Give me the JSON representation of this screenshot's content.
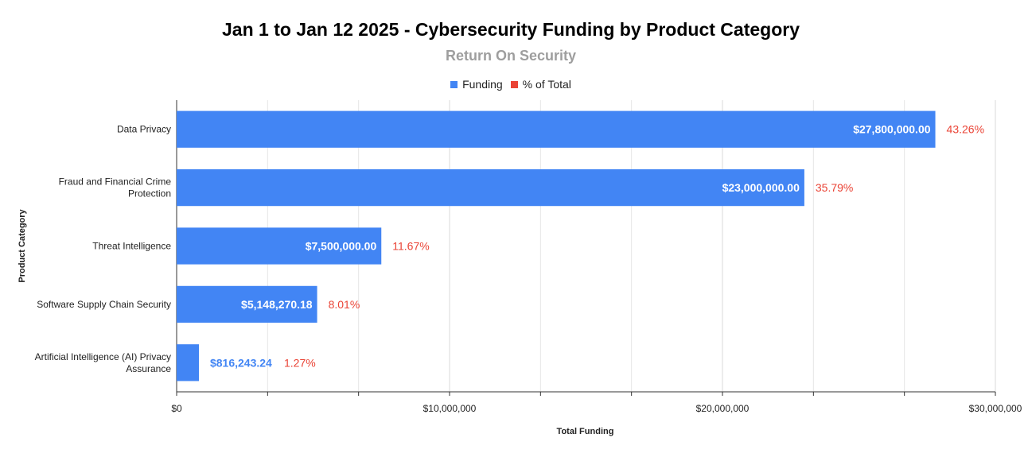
{
  "chart_data": {
    "type": "bar",
    "orientation": "horizontal",
    "title": "Jan 1 to Jan 12 2025 - Cybersecurity Funding by Product Category",
    "subtitle": "Return On Security",
    "xlabel": "Total Funding",
    "ylabel": "Product Category",
    "xlim": [
      0,
      30000000
    ],
    "xticks": [
      0,
      10000000,
      20000000,
      30000000
    ],
    "xtick_labels": [
      "$0",
      "$10,000,000",
      "$20,000,000",
      "$30,000,000"
    ],
    "legend": [
      {
        "name": "Funding",
        "color": "#4285f4"
      },
      {
        "name": "% of Total",
        "color": "#ea4335"
      }
    ],
    "legend_position": "top-center",
    "categories": [
      [
        "Data Privacy"
      ],
      [
        "Fraud and Financial Crime",
        "Protection"
      ],
      [
        "Threat Intelligence"
      ],
      [
        "Software Supply Chain Security"
      ],
      [
        "Artificial Intelligence (AI) Privacy",
        "Assurance"
      ]
    ],
    "series": [
      {
        "name": "Funding",
        "values": [
          27800000,
          23000000,
          7500000,
          5148270.18,
          816243.24
        ],
        "labels": [
          "$27,800,000.00",
          "$23,000,000.00",
          "$7,500,000.00",
          "$5,148,270.18",
          "$816,243.24"
        ]
      },
      {
        "name": "% of Total",
        "values": [
          43.26,
          35.79,
          11.67,
          8.01,
          1.27
        ],
        "labels": [
          "43.26%",
          "35.79%",
          "11.67%",
          "8.01%",
          "1.27%"
        ]
      }
    ],
    "colors": {
      "bar": "#4285f4",
      "pct": "#ea4335",
      "inside_label": "#ffffff",
      "outside_label": "#4285f4",
      "grid": "#e6e6e6",
      "axis": "#333333"
    }
  }
}
